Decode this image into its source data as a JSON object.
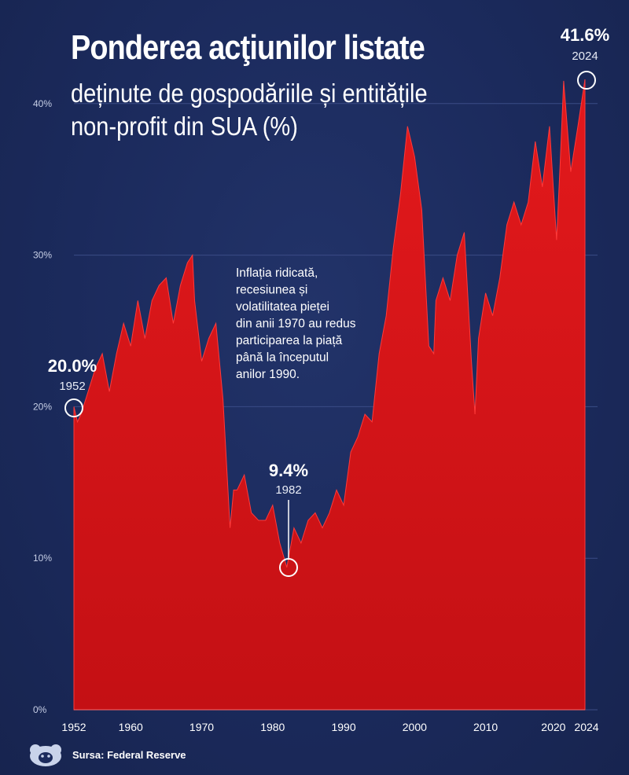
{
  "header": {
    "title": "Ponderea acţiunilor listate",
    "subtitle_line1": "deținute de gospodăriile și entitățile",
    "subtitle_line2": "non-profit din SUA (%)"
  },
  "source": "Sursa: Federal Reserve",
  "colors": {
    "background": "#1b2a5c",
    "area": "#e0181b",
    "text": "#ffffff",
    "grid": "#3b4c86"
  },
  "annotation_text": [
    "Inflația ridicată,",
    "recesiunea și",
    "volatilitatea pieței",
    "din anii 1970 au redus",
    "participarea la piață",
    "până la începutul",
    "anilor 1990."
  ],
  "chart_data": {
    "type": "area",
    "xlim": [
      1952,
      2024
    ],
    "ylim": [
      0,
      45
    ],
    "xticks": [
      1952,
      1960,
      1970,
      1980,
      1990,
      2000,
      2010,
      2020,
      2024
    ],
    "yticks": [
      0,
      10,
      20,
      30,
      40
    ],
    "ytick_labels": [
      "0%",
      "10%",
      "20%",
      "30%",
      "40%"
    ],
    "grid": true,
    "x": [
      1952,
      1952.5,
      1953,
      1954,
      1955,
      1956,
      1957,
      1958,
      1959,
      1960,
      1961,
      1962,
      1963,
      1964,
      1965,
      1966,
      1967,
      1968,
      1968.7,
      1969,
      1970,
      1971,
      1972,
      1973,
      1974,
      1974.5,
      1975,
      1976,
      1977,
      1978,
      1979,
      1980,
      1981,
      1982,
      1983,
      1984,
      1985,
      1986,
      1987,
      1988,
      1989,
      1990,
      1991,
      1992,
      1993,
      1994,
      1995,
      1996,
      1997,
      1998,
      1999,
      2000,
      2001,
      2002,
      2002.7,
      2003,
      2004,
      2005,
      2006,
      2007,
      2008,
      2008.5,
      2009,
      2010,
      2011,
      2012,
      2013,
      2014,
      2015,
      2016,
      2017,
      2018,
      2019,
      2020,
      2020.5,
      2021,
      2022,
      2023,
      2024
    ],
    "values": [
      20.0,
      19.0,
      19.5,
      21.0,
      22.5,
      23.5,
      21.0,
      23.5,
      25.5,
      24.0,
      27.0,
      24.5,
      27.0,
      28.0,
      28.5,
      25.5,
      28.0,
      29.5,
      30.0,
      27.0,
      23.0,
      24.5,
      25.5,
      20.5,
      12.0,
      14.5,
      14.5,
      15.5,
      13.0,
      12.5,
      12.5,
      13.5,
      11.0,
      9.4,
      12.0,
      11.0,
      12.5,
      13.0,
      12.0,
      13.0,
      14.5,
      13.5,
      17.0,
      18.0,
      19.5,
      19.0,
      23.5,
      26.0,
      30.5,
      34.0,
      38.5,
      36.5,
      33.0,
      24.0,
      23.5,
      27.0,
      28.5,
      27.0,
      30.0,
      31.5,
      23.0,
      19.5,
      24.5,
      27.5,
      26.0,
      28.5,
      32.0,
      33.5,
      32.0,
      33.5,
      37.5,
      34.5,
      38.5,
      31.0,
      36.0,
      41.5,
      35.5,
      38.5,
      41.6
    ],
    "annotations": [
      {
        "value_label": "20.0%",
        "year_label": "1952",
        "x": 1952,
        "y": 20.0
      },
      {
        "value_label": "9.4%",
        "year_label": "1982",
        "x": 1982,
        "y": 9.4
      },
      {
        "value_label": "41.6%",
        "year_label": "2024",
        "x": 2024,
        "y": 41.6
      }
    ]
  }
}
